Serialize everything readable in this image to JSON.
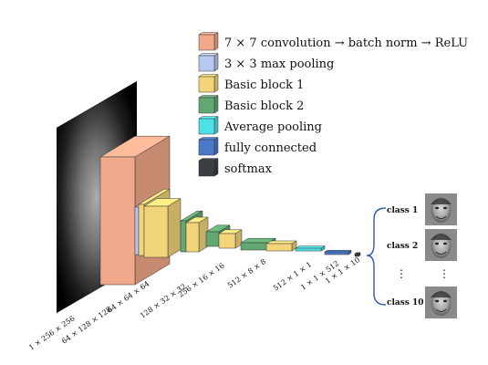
{
  "legend": [
    {
      "label": "7 × 7 convolution → batch norm → ReLU",
      "color": "#f2a88a",
      "icon": "conv-swatch-icon"
    },
    {
      "label": "3 × 3 max pooling",
      "color": "#b7c9ee",
      "icon": "maxpool-swatch-icon"
    },
    {
      "label": "Basic block 1",
      "color": "#f2d57a",
      "icon": "block1-swatch-icon"
    },
    {
      "label": "Basic block 2",
      "color": "#63a873",
      "icon": "block2-swatch-icon"
    },
    {
      "label": "Average pooling",
      "color": "#4fe0e6",
      "icon": "avgpool-swatch-icon"
    },
    {
      "label": "fully connected",
      "color": "#4a79c8",
      "icon": "fc-swatch-icon"
    },
    {
      "label": "softmax",
      "color": "#3a3d42",
      "icon": "softmax-swatch-icon"
    }
  ],
  "dimensions": [
    "1 × 256 × 256",
    "64 × 128 × 128",
    "64 × 64 × 64",
    "128 × 32 × 32",
    "256 × 16 × 16",
    "512 × 8 × 8",
    "512 × 1 × 1",
    "1 × 1 × 512",
    "1 × 1 × 10"
  ],
  "classes": [
    {
      "label": "class 1",
      "icon": "face-thumbnail-icon"
    },
    {
      "label": "class 2",
      "icon": "face-thumbnail-icon"
    },
    {
      "label": "class 10",
      "icon": "face-thumbnail-icon"
    }
  ],
  "ellipsis": "⋮"
}
